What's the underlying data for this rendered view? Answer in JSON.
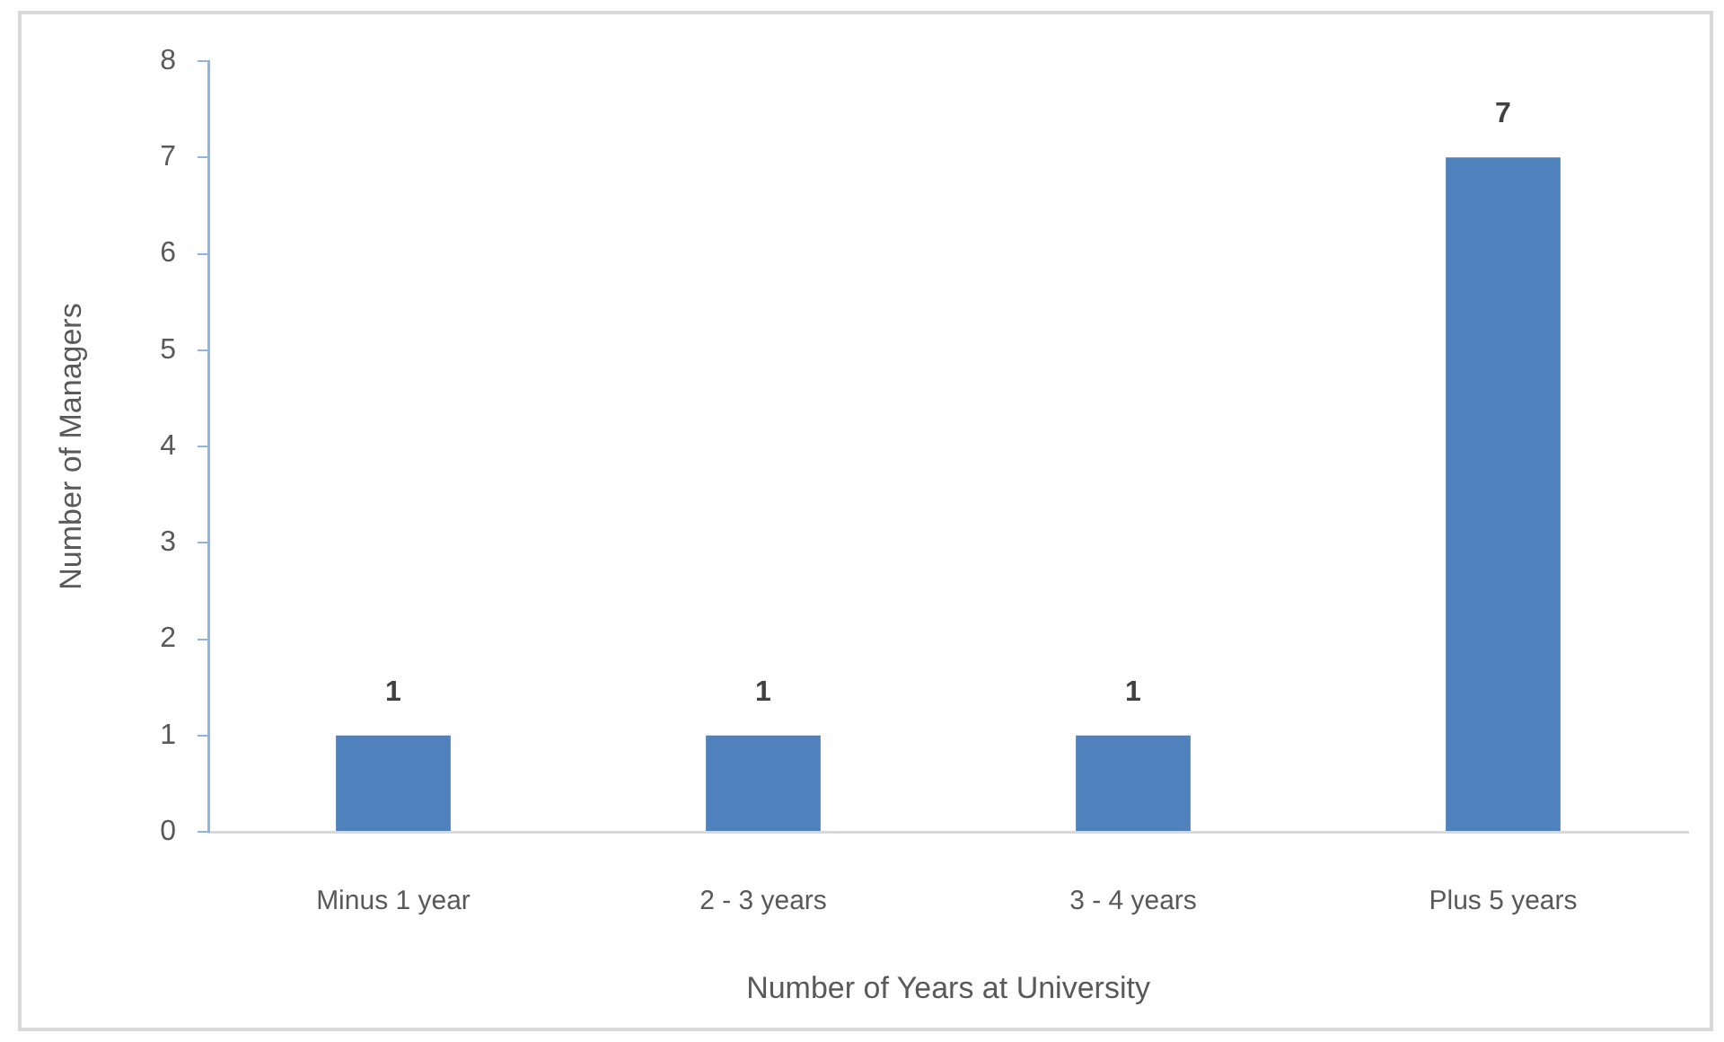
{
  "chart_data": {
    "type": "bar",
    "xlabel": "Number of Years at University",
    "ylabel": "Number of Managers",
    "categories": [
      "Minus 1 year",
      "2 - 3 years",
      "3 - 4 years",
      "Plus 5 years"
    ],
    "values": [
      1,
      1,
      1,
      7
    ],
    "color": "#4f81bd",
    "ylim": [
      0,
      8
    ],
    "yticks": [
      0,
      1,
      2,
      3,
      4,
      5,
      6,
      7,
      8
    ],
    "grid": false,
    "legend": false,
    "data_labels": true
  }
}
